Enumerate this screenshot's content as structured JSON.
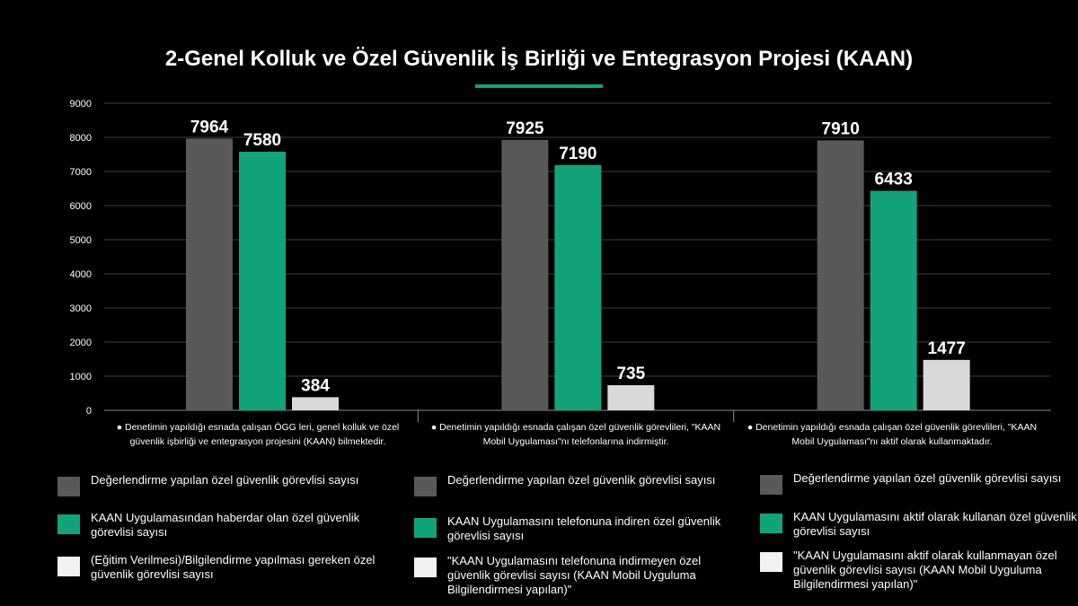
{
  "chart_data": {
    "type": "bar",
    "title": "2-Genel Kolluk ve Özel Güvenlik İş Birliği ve Entegrasyon Projesi (KAAN)",
    "ylim": [
      0,
      9000
    ],
    "yticks": [
      "0",
      "1000",
      "2000",
      "3000",
      "4000",
      "5000",
      "6000",
      "7000",
      "8000",
      "9000"
    ],
    "grid": true,
    "colors": [
      "#595959",
      "#12a37a",
      "#d9d9d9"
    ],
    "groups": [
      {
        "category_label": "● Denetimin yapıldığı esnada çalışan ÖGG leri, genel kolluk ve özel güvenlik işbirliği ve entegrasyon projesini (KAAN) bilmektedir.",
        "values": [
          7964,
          7580,
          384
        ],
        "value_labels": [
          "7964",
          "7580",
          "384"
        ],
        "legend": [
          "Değerlendirme yapılan  özel güvenlik görevlisi sayısı",
          "KAAN Uygulamasından  haberdar olan özel güvenlik görevlisi sayısı",
          "(Eğitim Verilmesi)/Bilgilendirme yapılması gereken özel güvenlik görevlisi sayısı"
        ]
      },
      {
        "category_label": "● Denetimin yapıldığı esnada çalışan özel güvenlik görevlileri, \"KAAN Mobil Uygulaması\"nı telefonlarına indirmiştir.",
        "values": [
          7925,
          7190,
          735
        ],
        "value_labels": [
          "7925",
          "7190",
          "735"
        ],
        "legend": [
          "Değerlendirme yapılan  özel güvenlik görevlisi sayısı",
          "KAAN Uygulamasını  telefonuna  indiren özel güvenlik görevlisi sayısı",
          "\"KAAN Uygulamasını  telefonuna  indirmeyen özel güvenlik görevlisi sayısı  (KAAN Mobil Uyguluma Bilgilendirmesi yapılan)\""
        ]
      },
      {
        "category_label": "● Denetimin yapıldığı esnada çalışan özel güvenlik görevlileri, \"KAAN Mobil Uygulaması\"nı aktif olarak kullanmaktadır.",
        "values": [
          7910,
          6433,
          1477
        ],
        "value_labels": [
          "7910",
          "6433",
          "1477"
        ],
        "legend": [
          "Değerlendirme yapılan  özel güvenlik görevlisi sayısı",
          "KAAN Uygulamasını  aktif olarak kullanan özel güvenlik görevlisi sayısı",
          "\"KAAN Uygulamasını  aktif olarak kullanmayan özel güvenlik görevlisi sayısı  (KAAN Mobil Uyguluma  Bilgilendirmesi yapılan)\""
        ]
      }
    ]
  }
}
